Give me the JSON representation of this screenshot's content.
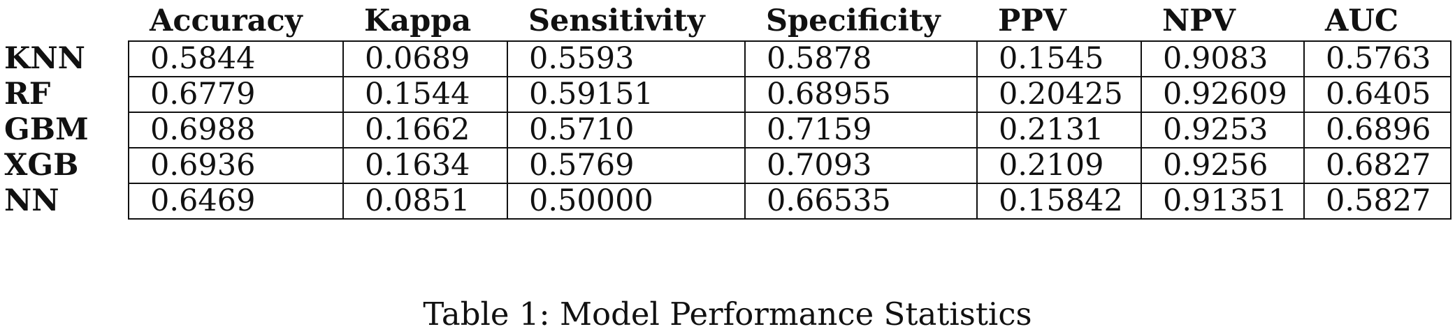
{
  "table": {
    "columns": [
      "Accuracy",
      "Kappa",
      "Sensitivity",
      "Specificity",
      "PPV",
      "NPV",
      "AUC"
    ],
    "rows": [
      {
        "label": "KNN",
        "values": [
          "0.5844",
          "0.0689",
          "0.5593",
          "0.5878",
          "0.1545",
          "0.9083",
          "0.5763"
        ]
      },
      {
        "label": "RF",
        "values": [
          "0.6779",
          "0.1544",
          "0.59151",
          "0.68955",
          "0.20425",
          "0.92609",
          "0.6405"
        ]
      },
      {
        "label": "GBM",
        "values": [
          "0.6988",
          "0.1662",
          "0.5710",
          "0.7159",
          "0.2131",
          "0.9253",
          "0.6896"
        ]
      },
      {
        "label": "XGB",
        "values": [
          "0.6936",
          "0.1634",
          "0.5769",
          "0.7093",
          "0.2109",
          "0.9256",
          "0.6827"
        ]
      },
      {
        "label": "NN",
        "values": [
          "0.6469",
          "0.0851",
          "0.50000",
          "0.66535",
          "0.15842",
          "0.91351",
          "0.5827"
        ]
      }
    ],
    "caption": "Table 1: Model Performance Statistics"
  }
}
